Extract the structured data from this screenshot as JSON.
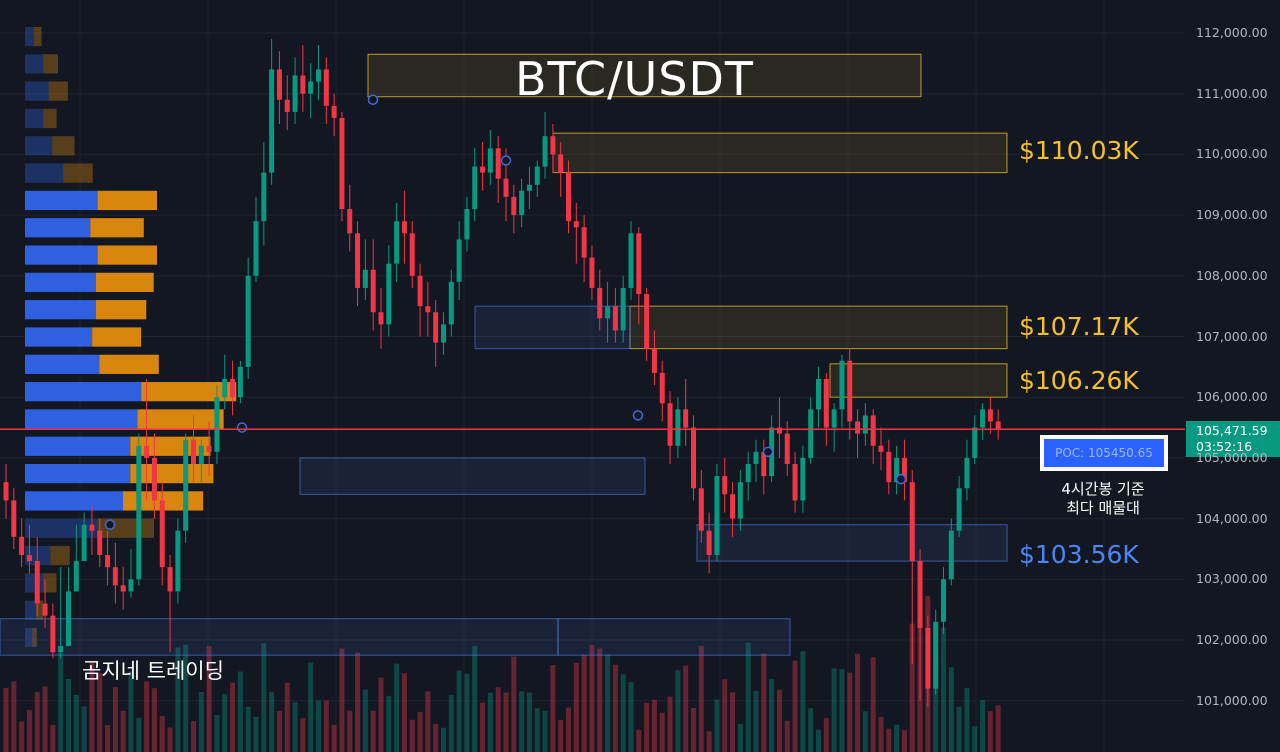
{
  "chart_data": {
    "type": "candlestick",
    "title": "BTC/USDT",
    "y_axis": {
      "ticks": [
        "112,000.00",
        "111,000.00",
        "110,000.00",
        "109,000.00",
        "108,000.00",
        "107,000.00",
        "106,000.00",
        "105,000.00",
        "104,000.00",
        "103,000.00",
        "102,000.00",
        "101,000.00"
      ],
      "tick_values": [
        112000,
        111000,
        110000,
        109000,
        108000,
        107000,
        106000,
        105000,
        104000,
        103000,
        102000,
        101000
      ],
      "range": [
        100250,
        112550
      ]
    },
    "last_price": {
      "value": "105,471.59",
      "countdown": "03:52:16",
      "numeric": 105471.59
    },
    "levels": [
      {
        "label": "$110.03K",
        "low": 109700,
        "high": 110350,
        "color": "#f5c02e"
      },
      {
        "label": "$107.17K",
        "low": 106800,
        "high": 107500,
        "color": "#f5c02e"
      },
      {
        "label": "$106.26K",
        "low": 106000,
        "high": 106550,
        "color": "#f5c02e"
      },
      {
        "label": "$103.56K",
        "low": 103300,
        "high": 103900,
        "color": "#4a86f7"
      }
    ],
    "poc": {
      "label": "POC: 105450.65",
      "value": 105450.65
    },
    "poc_note": [
      "4시간봉 기준",
      "최다 매물대"
    ],
    "watermark": "곰지네 트레이딩",
    "candles": [
      [
        104600,
        104900,
        104300,
        104000
      ],
      [
        104300,
        104500,
        103700,
        103500
      ],
      [
        103700,
        104000,
        103400,
        103200
      ],
      [
        103400,
        103900,
        103300,
        103100
      ],
      [
        103300,
        103700,
        102600,
        102400
      ],
      [
        102600,
        103000,
        102400,
        102200
      ],
      [
        102400,
        102600,
        101800,
        101700
      ],
      [
        101800,
        103200,
        101900,
        101700
      ],
      [
        101900,
        103200,
        102800,
        102600
      ],
      [
        102800,
        103900,
        103300,
        103000
      ],
      [
        103300,
        104100,
        103900,
        103600
      ],
      [
        103900,
        104200,
        103800,
        103400
      ],
      [
        103800,
        104000,
        103400,
        103200
      ],
      [
        103400,
        103800,
        103200,
        102900
      ],
      [
        103200,
        103600,
        102900,
        102600
      ],
      [
        102900,
        103200,
        102800,
        102500
      ],
      [
        102800,
        103500,
        103000,
        102700
      ],
      [
        103000,
        105400,
        105200,
        102900
      ],
      [
        105200,
        106300,
        105000,
        104300
      ],
      [
        105000,
        105400,
        104300,
        104000
      ],
      [
        104300,
        104600,
        103200,
        102900
      ],
      [
        103200,
        103400,
        102800,
        101800
      ],
      [
        102800,
        104000,
        103800,
        102600
      ],
      [
        103800,
        105400,
        105300,
        103600
      ],
      [
        105300,
        105700,
        104900,
        104600
      ],
      [
        104900,
        105300,
        105200,
        104600
      ],
      [
        105200,
        105600,
        105100,
        104700
      ],
      [
        105100,
        106200,
        106000,
        104900
      ],
      [
        106000,
        106700,
        106300,
        105800
      ],
      [
        106300,
        106600,
        106000,
        105700
      ],
      [
        106000,
        106600,
        106500,
        105900
      ],
      [
        106500,
        108300,
        108000,
        106300
      ],
      [
        108000,
        109300,
        108900,
        107900
      ],
      [
        108900,
        110200,
        109700,
        108500
      ],
      [
        109700,
        111900,
        111400,
        109500
      ],
      [
        111400,
        111700,
        110900,
        110500
      ],
      [
        110900,
        111300,
        110700,
        110400
      ],
      [
        110700,
        111600,
        111300,
        110500
      ],
      [
        111300,
        111800,
        111000,
        110700
      ],
      [
        111000,
        111500,
        111200,
        110600
      ],
      [
        111200,
        111800,
        111400,
        110900
      ],
      [
        111400,
        111600,
        110800,
        110500
      ],
      [
        110800,
        111000,
        110600,
        110300
      ],
      [
        110600,
        110700,
        109100,
        108900
      ],
      [
        109100,
        109500,
        108700,
        108400
      ],
      [
        108700,
        108900,
        107800,
        107500
      ],
      [
        107800,
        108600,
        108100,
        107600
      ],
      [
        108100,
        108600,
        107400,
        107100
      ],
      [
        107400,
        107800,
        107200,
        106800
      ],
      [
        107200,
        108500,
        108200,
        107000
      ],
      [
        108200,
        109200,
        108900,
        107900
      ],
      [
        108900,
        109400,
        108700,
        108200
      ],
      [
        108700,
        108900,
        108000,
        107800
      ],
      [
        108000,
        108200,
        107500,
        107000
      ],
      [
        107500,
        107900,
        107400,
        107000
      ],
      [
        107400,
        107600,
        106900,
        106500
      ],
      [
        106900,
        107400,
        107200,
        106700
      ],
      [
        107200,
        108100,
        107900,
        107000
      ],
      [
        107900,
        108900,
        108600,
        107600
      ],
      [
        108600,
        109300,
        109100,
        108400
      ],
      [
        109100,
        110100,
        109800,
        108900
      ],
      [
        109800,
        110200,
        109700,
        109400
      ],
      [
        109700,
        110400,
        110100,
        109500
      ],
      [
        110100,
        110300,
        109600,
        109200
      ],
      [
        109600,
        110100,
        109300,
        108900
      ],
      [
        109300,
        109500,
        109000,
        108700
      ],
      [
        109000,
        109600,
        109400,
        108800
      ],
      [
        109400,
        109800,
        109500,
        109100
      ],
      [
        109500,
        109900,
        109800,
        109300
      ],
      [
        109800,
        110700,
        110300,
        109600
      ],
      [
        110300,
        110500,
        110000,
        109700
      ],
      [
        110000,
        110200,
        109700,
        109300
      ],
      [
        109700,
        109900,
        108900,
        108700
      ],
      [
        108900,
        109200,
        108800,
        108200
      ],
      [
        108800,
        109000,
        108300,
        107900
      ],
      [
        108300,
        108500,
        107800,
        107600
      ],
      [
        107800,
        108100,
        107300,
        107100
      ],
      [
        107300,
        107900,
        107500,
        106900
      ],
      [
        107500,
        107800,
        107100,
        106900
      ],
      [
        107100,
        108000,
        107800,
        106900
      ],
      [
        107800,
        108900,
        108700,
        107600
      ],
      [
        108700,
        108800,
        107700,
        107200
      ],
      [
        107700,
        107800,
        106800,
        106600
      ],
      [
        106800,
        107100,
        106400,
        106200
      ],
      [
        106400,
        106600,
        105900,
        105600
      ],
      [
        105900,
        106100,
        105200,
        104900
      ],
      [
        105200,
        106000,
        105800,
        105000
      ],
      [
        105800,
        106300,
        105500,
        105200
      ],
      [
        105500,
        105700,
        104500,
        104300
      ],
      [
        104500,
        104800,
        103800,
        103600
      ],
      [
        103800,
        104100,
        103400,
        103100
      ],
      [
        103400,
        104900,
        104700,
        103300
      ],
      [
        104700,
        105000,
        104400,
        104100
      ],
      [
        104400,
        104600,
        104000,
        103700
      ],
      [
        104000,
        104800,
        104600,
        103800
      ],
      [
        104600,
        105100,
        104900,
        104300
      ],
      [
        104900,
        105300,
        105100,
        104600
      ],
      [
        105100,
        105300,
        104700,
        104400
      ],
      [
        104700,
        105700,
        105500,
        104600
      ],
      [
        105500,
        106000,
        105400,
        105000
      ],
      [
        105400,
        105600,
        104900,
        104700
      ],
      [
        104900,
        105100,
        104300,
        104100
      ],
      [
        104300,
        105200,
        105000,
        104100
      ],
      [
        105000,
        106000,
        105800,
        104900
      ],
      [
        105800,
        106500,
        106300,
        105500
      ],
      [
        106300,
        106400,
        105500,
        105200
      ],
      [
        105500,
        105900,
        105800,
        105100
      ],
      [
        105800,
        106700,
        106600,
        105500
      ],
      [
        106600,
        106800,
        105600,
        105300
      ],
      [
        105600,
        105800,
        105400,
        105000
      ],
      [
        105400,
        105900,
        105700,
        105200
      ],
      [
        105700,
        105800,
        105200,
        104900
      ],
      [
        105200,
        105500,
        105100,
        104800
      ],
      [
        105100,
        105300,
        104600,
        104400
      ],
      [
        104600,
        105200,
        105000,
        104400
      ],
      [
        105000,
        105300,
        104600,
        104300
      ],
      [
        104600,
        104800,
        103300,
        101600
      ],
      [
        103300,
        103500,
        102200,
        101000
      ],
      [
        102200,
        102400,
        101200,
        100900
      ],
      [
        101200,
        102500,
        102300,
        101100
      ],
      [
        102300,
        103200,
        103000,
        102100
      ],
      [
        103000,
        104000,
        103800,
        102900
      ],
      [
        103800,
        104700,
        104500,
        103700
      ],
      [
        104500,
        105300,
        105000,
        104300
      ],
      [
        105000,
        105700,
        105500,
        104900
      ],
      [
        105500,
        105900,
        105800,
        105300
      ],
      [
        105800,
        106000,
        105600,
        105400
      ],
      [
        105600,
        105800,
        105480,
        105300
      ]
    ],
    "volume_profile": [
      [
        111750,
        112100,
        0.05,
        0.05
      ],
      [
        111300,
        111650,
        0.1,
        0.1
      ],
      [
        110850,
        111200,
        0.13,
        0.13
      ],
      [
        110400,
        110750,
        0.1,
        0.09
      ],
      [
        109950,
        110300,
        0.15,
        0.15
      ],
      [
        109500,
        109850,
        0.21,
        0.2
      ],
      [
        109050,
        109400,
        0.4,
        0.4
      ],
      [
        108600,
        108950,
        0.36,
        0.36
      ],
      [
        108150,
        108500,
        0.4,
        0.4
      ],
      [
        107700,
        108050,
        0.39,
        0.39
      ],
      [
        107250,
        107600,
        0.39,
        0.34
      ],
      [
        106800,
        107150,
        0.37,
        0.33
      ],
      [
        106350,
        106700,
        0.41,
        0.4
      ],
      [
        105900,
        106250,
        0.64,
        0.64
      ],
      [
        105450,
        105800,
        0.62,
        0.58
      ],
      [
        105000,
        105350,
        0.58,
        0.54
      ],
      [
        104550,
        104900,
        0.58,
        0.56
      ],
      [
        104100,
        104450,
        0.54,
        0.54
      ],
      [
        103650,
        104000,
        0.4,
        0.38
      ],
      [
        103200,
        103550,
        0.14,
        0.13
      ],
      [
        102750,
        103100,
        0.1,
        0.09
      ],
      [
        102300,
        102650,
        0.06,
        0.05
      ],
      [
        101850,
        102200,
        0.04,
        0.03
      ]
    ]
  }
}
